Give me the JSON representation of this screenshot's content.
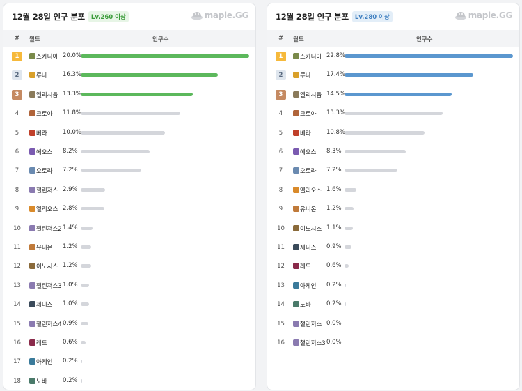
{
  "chart_data": [
    {
      "type": "bar",
      "title": "12월 28일 인구 분포",
      "badge": "Lv.260 이상",
      "logo": "maple.GG",
      "columns": {
        "rank": "#",
        "world": "월드",
        "population": "인구수"
      },
      "highlight_color": "#5cb85c",
      "default_color": "#d4d6db",
      "ylim": [
        0,
        20
      ],
      "rows": [
        {
          "rank": "1",
          "world": "스카니아",
          "value": 20.0,
          "label": "20.0%",
          "icon_color": "#7a8a4a"
        },
        {
          "rank": "2",
          "world": "루나",
          "value": 16.3,
          "label": "16.3%",
          "icon_color": "#d9a02a"
        },
        {
          "rank": "3",
          "world": "엘리시움",
          "value": 13.3,
          "label": "13.3%",
          "icon_color": "#8a7a5a"
        },
        {
          "rank": "4",
          "world": "크로아",
          "value": 11.8,
          "label": "11.8%",
          "icon_color": "#b0643a"
        },
        {
          "rank": "5",
          "world": "베라",
          "value": 10.0,
          "label": "10.0%",
          "icon_color": "#c0402a"
        },
        {
          "rank": "6",
          "world": "에오스",
          "value": 8.2,
          "label": "8.2%",
          "icon_color": "#7a5ab0"
        },
        {
          "rank": "7",
          "world": "오로라",
          "value": 7.2,
          "label": "7.2%",
          "icon_color": "#6a8ab0"
        },
        {
          "rank": "8",
          "world": "챌린저스",
          "value": 2.9,
          "label": "2.9%",
          "icon_color": "#8a7ab0"
        },
        {
          "rank": "9",
          "world": "엘리오스",
          "value": 2.8,
          "label": "2.8%",
          "icon_color": "#d98a2a"
        },
        {
          "rank": "10",
          "world": "챌린저스2",
          "value": 1.4,
          "label": "1.4%",
          "icon_color": "#8a7ab0"
        },
        {
          "rank": "11",
          "world": "유니온",
          "value": 1.2,
          "label": "1.2%",
          "icon_color": "#c07a3a"
        },
        {
          "rank": "12",
          "world": "이노시스",
          "value": 1.2,
          "label": "1.2%",
          "icon_color": "#8a6a3a"
        },
        {
          "rank": "13",
          "world": "챌린저스3",
          "value": 1.0,
          "label": "1.0%",
          "icon_color": "#8a7ab0"
        },
        {
          "rank": "14",
          "world": "제니스",
          "value": 1.0,
          "label": "1.0%",
          "icon_color": "#3a4a5a"
        },
        {
          "rank": "15",
          "world": "챌린저스4",
          "value": 0.9,
          "label": "0.9%",
          "icon_color": "#8a7ab0"
        },
        {
          "rank": "16",
          "world": "레드",
          "value": 0.6,
          "label": "0.6%",
          "icon_color": "#8a2a4a"
        },
        {
          "rank": "17",
          "world": "아케인",
          "value": 0.2,
          "label": "0.2%",
          "icon_color": "#3a7a9a"
        },
        {
          "rank": "18",
          "world": "노바",
          "value": 0.2,
          "label": "0.2%",
          "icon_color": "#4a7a6a"
        }
      ]
    },
    {
      "type": "bar",
      "title": "12월 28일 인구 분포",
      "badge": "Lv.280 이상",
      "logo": "maple.GG",
      "columns": {
        "rank": "#",
        "world": "월드",
        "population": "인구수"
      },
      "highlight_color": "#5b97cf",
      "default_color": "#d4d6db",
      "ylim": [
        0,
        22.8
      ],
      "rows": [
        {
          "rank": "1",
          "world": "스카니아",
          "value": 22.8,
          "label": "22.8%",
          "icon_color": "#7a8a4a"
        },
        {
          "rank": "2",
          "world": "루나",
          "value": 17.4,
          "label": "17.4%",
          "icon_color": "#d9a02a"
        },
        {
          "rank": "3",
          "world": "엘리시움",
          "value": 14.5,
          "label": "14.5%",
          "icon_color": "#8a7a5a"
        },
        {
          "rank": "4",
          "world": "크로아",
          "value": 13.3,
          "label": "13.3%",
          "icon_color": "#b0643a"
        },
        {
          "rank": "5",
          "world": "베라",
          "value": 10.8,
          "label": "10.8%",
          "icon_color": "#c0402a"
        },
        {
          "rank": "6",
          "world": "에오스",
          "value": 8.3,
          "label": "8.3%",
          "icon_color": "#7a5ab0"
        },
        {
          "rank": "7",
          "world": "오로라",
          "value": 7.2,
          "label": "7.2%",
          "icon_color": "#6a8ab0"
        },
        {
          "rank": "8",
          "world": "엘리오스",
          "value": 1.6,
          "label": "1.6%",
          "icon_color": "#d98a2a"
        },
        {
          "rank": "9",
          "world": "유니온",
          "value": 1.2,
          "label": "1.2%",
          "icon_color": "#c07a3a"
        },
        {
          "rank": "10",
          "world": "이노시스",
          "value": 1.1,
          "label": "1.1%",
          "icon_color": "#8a6a3a"
        },
        {
          "rank": "11",
          "world": "제니스",
          "value": 0.9,
          "label": "0.9%",
          "icon_color": "#3a4a5a"
        },
        {
          "rank": "12",
          "world": "레드",
          "value": 0.6,
          "label": "0.6%",
          "icon_color": "#8a2a4a"
        },
        {
          "rank": "13",
          "world": "아케인",
          "value": 0.2,
          "label": "0.2%",
          "icon_color": "#3a7a9a"
        },
        {
          "rank": "14",
          "world": "노바",
          "value": 0.2,
          "label": "0.2%",
          "icon_color": "#4a7a6a"
        },
        {
          "rank": "15",
          "world": "챌린저스",
          "value": 0.0,
          "label": "0.0%",
          "icon_color": "#8a7ab0"
        },
        {
          "rank": "16",
          "world": "챌린저스3",
          "value": 0.0,
          "label": "0.0%",
          "icon_color": "#8a7ab0"
        }
      ]
    }
  ]
}
